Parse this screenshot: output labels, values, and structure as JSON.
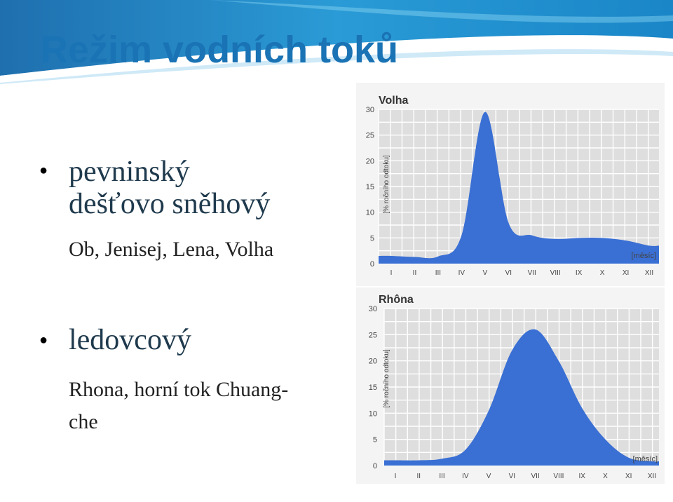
{
  "title": "Režim vodních toků",
  "bullets": [
    {
      "heading_lines": [
        "pevninský",
        "dešťovo sněhový"
      ],
      "examples_lines": [
        "Ob, Jenisej, Lena, Volha"
      ]
    },
    {
      "heading_lines": [
        "ledovcový"
      ],
      "examples_lines": [
        "Rhona, horní tok Chuang-",
        "che"
      ]
    }
  ],
  "colors": {
    "accent": "#1a73b4",
    "area": "#3a6fd4",
    "grid_bg": "#e4e4e4",
    "header": "#2a8ccf"
  },
  "chart_data": [
    {
      "type": "area",
      "title": "Volha",
      "ylabel": "[% ročního odtoku]",
      "xlabel": "[měsíc]",
      "x": [
        "I",
        "II",
        "III",
        "IV",
        "V",
        "VI",
        "VII",
        "VIII",
        "IX",
        "X",
        "XI",
        "XII"
      ],
      "y": [
        1.5,
        1.3,
        1.4,
        5.5,
        29.5,
        8.0,
        5.5,
        4.8,
        5.0,
        5.0,
        4.5,
        3.5
      ],
      "yticks": [
        0,
        5,
        10,
        15,
        20,
        25,
        30
      ],
      "ylim": [
        0,
        30
      ],
      "grid": true
    },
    {
      "type": "area",
      "title": "Rhôna",
      "ylabel": "[% ročního odtoku]",
      "xlabel": "[měsíc]",
      "x": [
        "I",
        "II",
        "III",
        "IV",
        "V",
        "VI",
        "VII",
        "VIII",
        "IX",
        "X",
        "XI",
        "XII"
      ],
      "y": [
        1.0,
        1.0,
        1.3,
        3.0,
        10.5,
        22.0,
        26.0,
        20.0,
        11.0,
        5.0,
        1.5,
        0.8
      ],
      "yticks": [
        0,
        5,
        10,
        15,
        20,
        25,
        30
      ],
      "ylim": [
        0,
        30
      ],
      "grid": true
    }
  ]
}
